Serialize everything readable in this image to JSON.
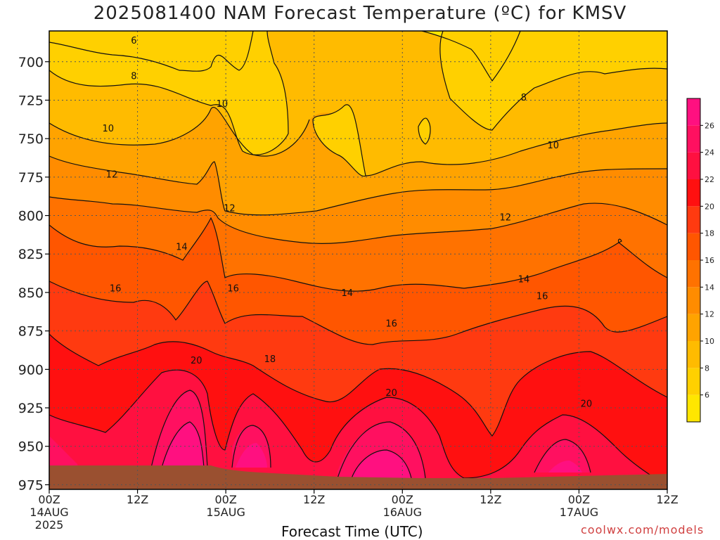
{
  "title": "2025081400 NAM Forecast Temperature (ºC) for KMSV",
  "x_axis_title": "Forecast Time (UTC)",
  "credit": "coolwx.com/models",
  "chart_data": {
    "type": "heatmap",
    "title": "2025081400 NAM Forecast Temperature (ºC) for KMSV",
    "xlabel": "Forecast Time (UTC)",
    "ylabel": "",
    "x_ticks": [
      {
        "hour": 0,
        "label": "00Z",
        "sub": [
          "14AUG",
          "2025"
        ]
      },
      {
        "hour": 12,
        "label": "12Z",
        "sub": []
      },
      {
        "hour": 24,
        "label": "00Z",
        "sub": [
          "15AUG"
        ]
      },
      {
        "hour": 36,
        "label": "12Z",
        "sub": []
      },
      {
        "hour": 48,
        "label": "00Z",
        "sub": [
          "16AUG"
        ]
      },
      {
        "hour": 60,
        "label": "12Z",
        "sub": []
      },
      {
        "hour": 72,
        "label": "00Z",
        "sub": [
          "17AUG"
        ]
      },
      {
        "hour": 84,
        "label": "12Z",
        "sub": []
      }
    ],
    "xlim": [
      0,
      84
    ],
    "y_ticks": [
      700,
      725,
      750,
      775,
      800,
      825,
      850,
      875,
      900,
      925,
      950,
      975
    ],
    "ylim": [
      680,
      978
    ],
    "y_direction": "pressure increases downward",
    "colorbar": {
      "levels": [
        4,
        6,
        8,
        10,
        12,
        14,
        16,
        18,
        20,
        22,
        24,
        26,
        28
      ],
      "tick_labels": [
        "6",
        "8",
        "10",
        "12",
        "14",
        "16",
        "18",
        "20",
        "22",
        "24",
        "26"
      ],
      "colors": [
        "#ffe600",
        "#ffd000",
        "#ffbb00",
        "#ffa300",
        "#ff8c00",
        "#ff7200",
        "#ff5600",
        "#ff3a10",
        "#ff1010",
        "#ff1040",
        "#ff1060",
        "#ff1080",
        "#ff10a0"
      ]
    },
    "contour_labels": [
      {
        "text": "6",
        "hour": 11.5,
        "p": 686
      },
      {
        "text": "8",
        "hour": 11.5,
        "p": 709
      },
      {
        "text": "8",
        "hour": 64.5,
        "p": 723
      },
      {
        "text": "10",
        "hour": 8,
        "p": 743
      },
      {
        "text": "10",
        "hour": 23.5,
        "p": 727
      },
      {
        "text": "10",
        "hour": 68.5,
        "p": 754
      },
      {
        "text": "12",
        "hour": 8.5,
        "p": 773
      },
      {
        "text": "12",
        "hour": 24.5,
        "p": 795
      },
      {
        "text": "12",
        "hour": 62,
        "p": 801
      },
      {
        "text": "14",
        "hour": 18,
        "p": 820
      },
      {
        "text": "14",
        "hour": 40.5,
        "p": 850
      },
      {
        "text": "14",
        "hour": 64.5,
        "p": 841
      },
      {
        "text": "16",
        "hour": 9,
        "p": 847
      },
      {
        "text": "16",
        "hour": 25,
        "p": 847
      },
      {
        "text": "16",
        "hour": 46.5,
        "p": 870
      },
      {
        "text": "16",
        "hour": 67,
        "p": 852
      },
      {
        "text": "18",
        "hour": 30,
        "p": 893
      },
      {
        "text": "20",
        "hour": 20,
        "p": 894
      },
      {
        "text": "20",
        "hour": 46.5,
        "p": 915
      },
      {
        "text": "20",
        "hour": 73,
        "p": 922
      }
    ],
    "grid": true,
    "terrain_color": "#9a5030"
  }
}
